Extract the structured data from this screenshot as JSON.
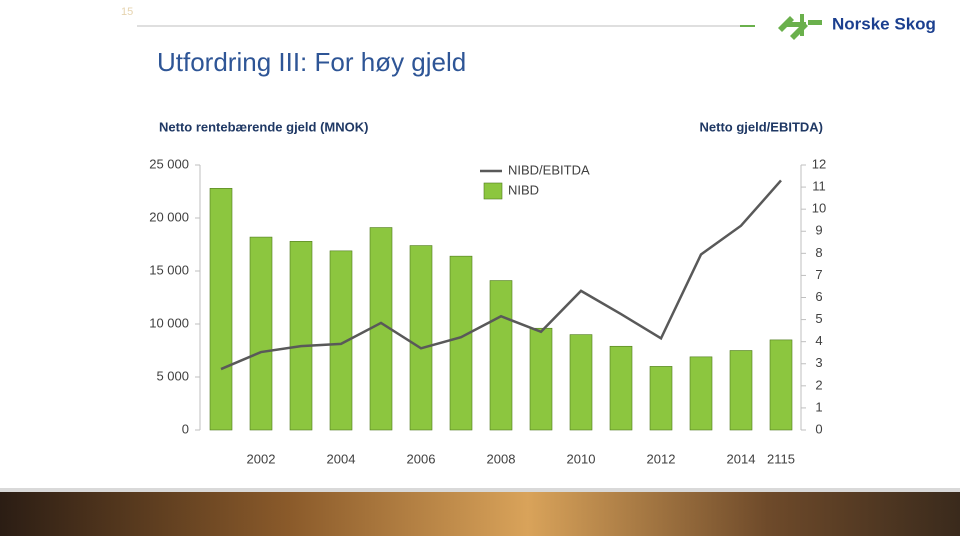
{
  "page_number": "15",
  "logo": "Norske Skog",
  "chart_data": {
    "type": "bar",
    "title": "Utfordring III: For høy gjeld",
    "y_label": "Netto rentebærende gjeld (MNOK)",
    "y2_label": "Netto gjeld/EBITDA)",
    "categories": [
      null,
      "2002",
      null,
      "2004",
      null,
      "2006",
      null,
      "2008",
      null,
      "2010",
      null,
      "2012",
      null,
      "2014",
      "2115"
    ],
    "series": [
      {
        "name": "NIBD/EBITDA",
        "color": "#595959",
        "axis": "y2",
        "values": [
          2.76,
          3.53,
          3.8,
          3.9,
          4.85,
          3.7,
          4.2,
          5.15,
          4.45,
          6.3,
          5.25,
          4.15,
          7.95,
          9.25,
          11.3
        ]
      },
      {
        "name": "NIBD",
        "color": "#8cc63f",
        "values": [
          22800,
          18200,
          17800,
          16900,
          19100,
          17400,
          16400,
          14100,
          9600,
          9000,
          7900,
          6000,
          6900,
          7500,
          8500
        ]
      }
    ],
    "ylim": [
      0,
      25000
    ],
    "yticks": [
      0,
      {
        "value": 5000,
        "label": "5 000"
      },
      {
        "value": 10000,
        "label": "10 000"
      },
      {
        "value": 15000,
        "label": "15 000"
      },
      {
        "value": 20000,
        "label": "20 000"
      },
      {
        "value": 25000,
        "label": "25 000"
      }
    ],
    "y2lim": [
      0,
      12
    ],
    "y2ticks": [
      0,
      1,
      2,
      3,
      4,
      5,
      6,
      7,
      8,
      9,
      10,
      11,
      12
    ]
  }
}
